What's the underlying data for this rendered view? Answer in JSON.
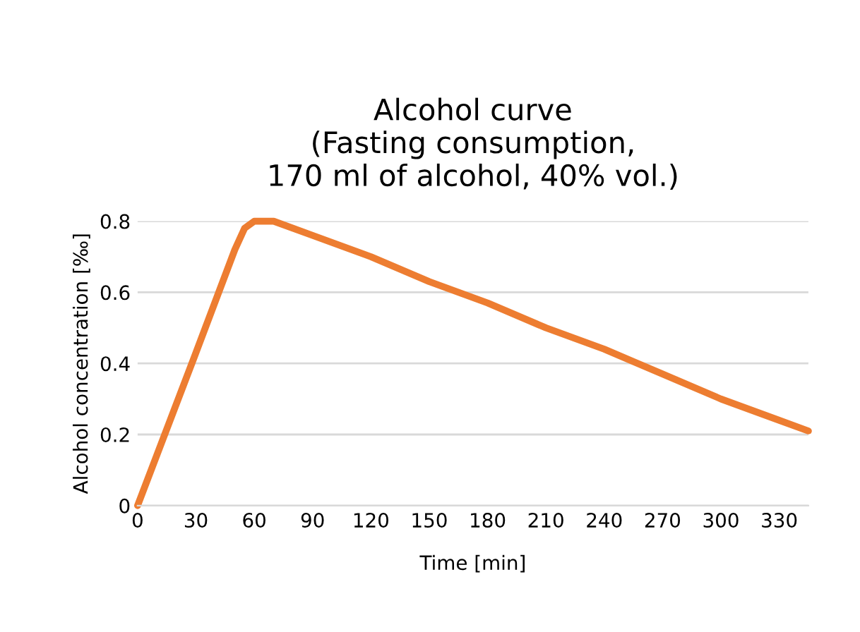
{
  "chart_data": {
    "type": "line",
    "title": "Alcohol curve\n(Fasting consumption,\n170 ml of alcohol, 40% vol.)",
    "xlabel": "Time [min]",
    "ylabel": "Alcohol concentration [‰]",
    "series": [
      {
        "color": "#ed7d31",
        "x": [
          0,
          30,
          50,
          55,
          60,
          65,
          70,
          90,
          120,
          150,
          180,
          210,
          240,
          270,
          300,
          330,
          345
        ],
        "values": [
          0,
          0.43,
          0.72,
          0.78,
          0.8,
          0.8,
          0.8,
          0.76,
          0.7,
          0.63,
          0.57,
          0.5,
          0.44,
          0.37,
          0.3,
          0.24,
          0.21
        ]
      }
    ],
    "xlim": [
      0,
      345
    ],
    "xticks": [
      0,
      30,
      60,
      90,
      120,
      150,
      180,
      210,
      240,
      270,
      300,
      330
    ],
    "ylim": [
      0,
      0.8
    ],
    "yticks": [
      0,
      0.2,
      0.4,
      0.6,
      0.8
    ],
    "grid": "y",
    "legend": false,
    "marker": "none",
    "line_style": "solid"
  }
}
